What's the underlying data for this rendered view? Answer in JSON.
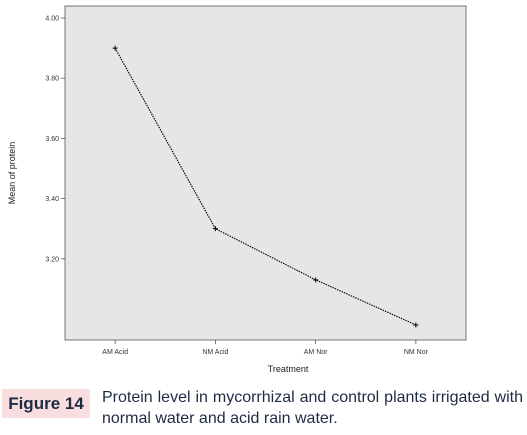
{
  "chart_data": {
    "type": "line",
    "categories": [
      "AM Acid",
      "NM Acid",
      "AM Nor",
      "NM Nor"
    ],
    "values": [
      3.9,
      3.3,
      3.13,
      2.98
    ],
    "xlabel": "Treatment",
    "ylabel": "Mean of protein",
    "y_ticks": [
      "4.00",
      "3.80",
      "3.60",
      "3.40",
      "3.20"
    ],
    "y_tick_values": [
      4.0,
      3.8,
      3.6,
      3.4,
      3.2
    ],
    "ylim": [
      2.93,
      4.04
    ],
    "grid": false,
    "background": "#e6e6e6",
    "line_color": "#000000"
  },
  "caption": {
    "label": "Figure 14",
    "text": "Protein level in mycorrhizal and control plants irrigated with normal water and acid rain water.",
    "label_background": "#f8dede",
    "text_color": "#1f2a44"
  }
}
